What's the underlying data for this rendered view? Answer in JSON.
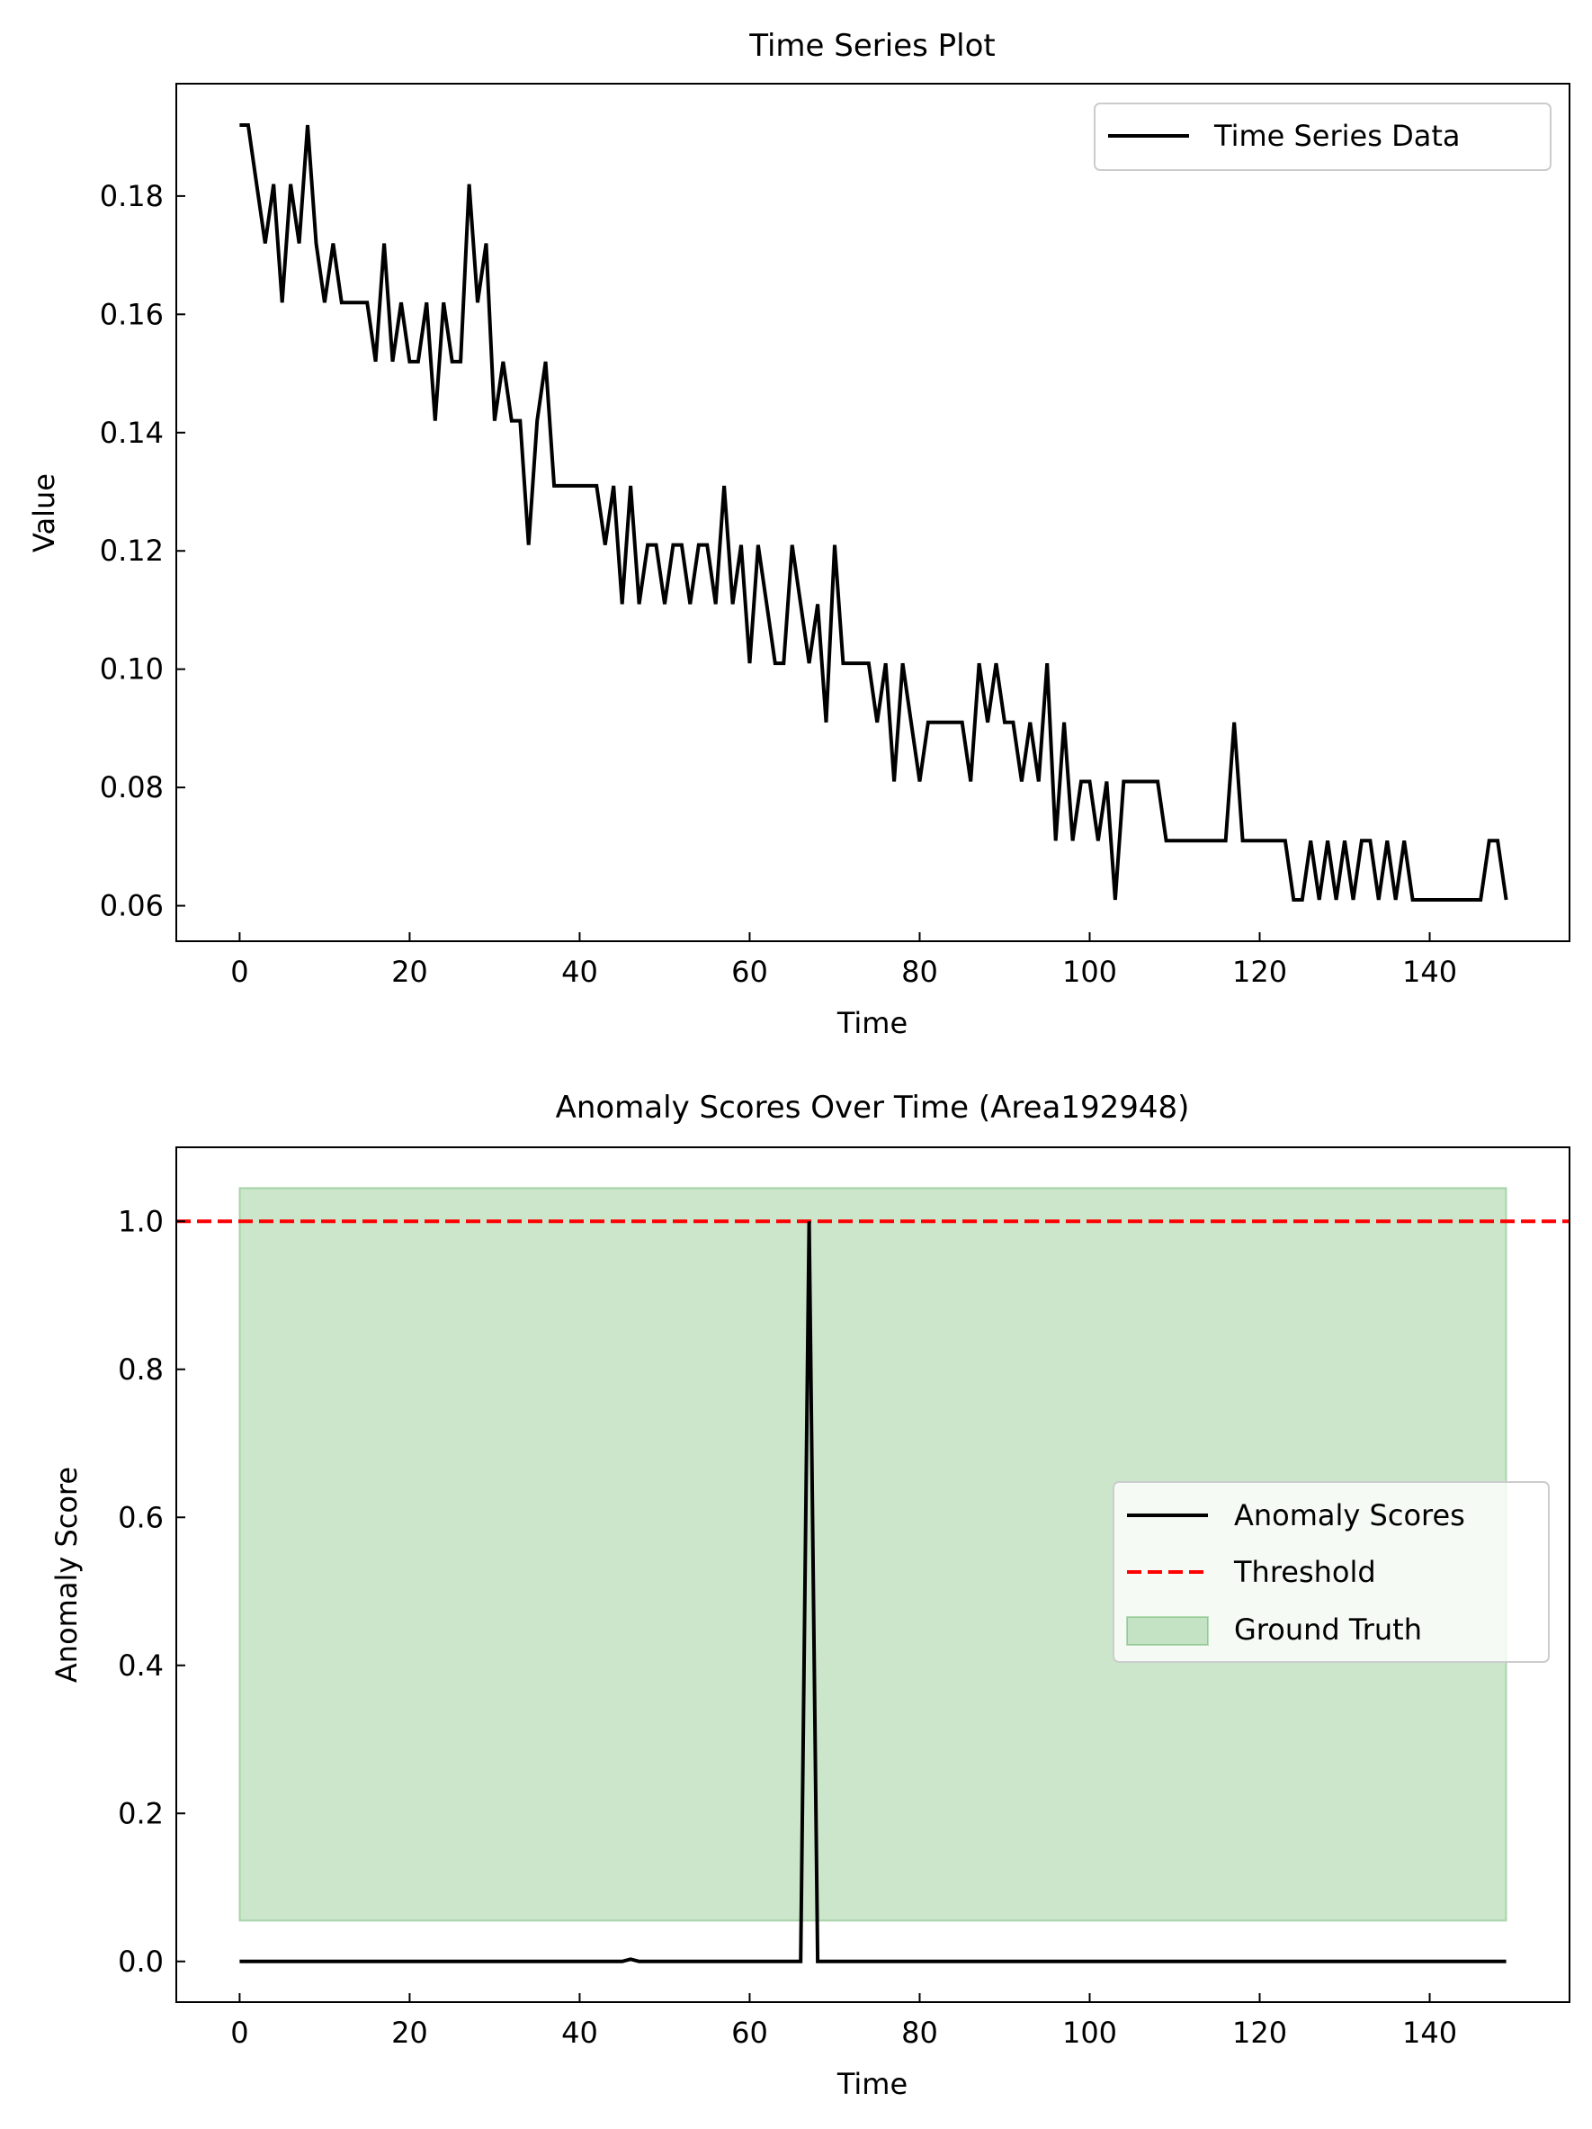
{
  "chart_data": [
    {
      "type": "line",
      "title": "Time Series Plot",
      "xlabel": "Time",
      "ylabel": "Value",
      "xlim": [
        -7.45,
        156.45
      ],
      "ylim": [
        0.054,
        0.199
      ],
      "xticks": [
        0,
        20,
        40,
        60,
        80,
        100,
        120,
        140
      ],
      "yticks": [
        0.06,
        0.08,
        0.1,
        0.12,
        0.14,
        0.16,
        0.18
      ],
      "ytick_labels": [
        "0.06",
        "0.08",
        "0.10",
        "0.12",
        "0.14",
        "0.16",
        "0.18"
      ],
      "grid": false,
      "legend": {
        "position": "top-right",
        "entries": [
          "Time Series Data"
        ]
      },
      "series": [
        {
          "name": "Time Series Data",
          "color": "#000000",
          "values": [
            0.192,
            0.192,
            0.182,
            0.172,
            0.182,
            0.162,
            0.182,
            0.172,
            0.192,
            0.172,
            0.162,
            0.172,
            0.162,
            0.162,
            0.162,
            0.162,
            0.152,
            0.172,
            0.152,
            0.162,
            0.152,
            0.152,
            0.162,
            0.142,
            0.162,
            0.152,
            0.152,
            0.182,
            0.162,
            0.172,
            0.142,
            0.152,
            0.142,
            0.142,
            0.121,
            0.142,
            0.152,
            0.131,
            0.131,
            0.131,
            0.131,
            0.131,
            0.131,
            0.121,
            0.131,
            0.111,
            0.131,
            0.111,
            0.121,
            0.121,
            0.111,
            0.121,
            0.121,
            0.111,
            0.121,
            0.121,
            0.111,
            0.131,
            0.111,
            0.121,
            0.101,
            0.121,
            0.111,
            0.101,
            0.101,
            0.121,
            0.111,
            0.101,
            0.111,
            0.091,
            0.121,
            0.101,
            0.101,
            0.101,
            0.101,
            0.091,
            0.101,
            0.081,
            0.101,
            0.091,
            0.081,
            0.091,
            0.091,
            0.091,
            0.091,
            0.091,
            0.081,
            0.101,
            0.091,
            0.101,
            0.091,
            0.091,
            0.081,
            0.091,
            0.081,
            0.101,
            0.071,
            0.091,
            0.071,
            0.081,
            0.081,
            0.071,
            0.081,
            0.061,
            0.081,
            0.081,
            0.081,
            0.081,
            0.081,
            0.071,
            0.071,
            0.071,
            0.071,
            0.071,
            0.071,
            0.071,
            0.071,
            0.091,
            0.071,
            0.071,
            0.071,
            0.071,
            0.071,
            0.071,
            0.061,
            0.061,
            0.071,
            0.061,
            0.071,
            0.061,
            0.071,
            0.061,
            0.071,
            0.071,
            0.061,
            0.071,
            0.061,
            0.071,
            0.061,
            0.061,
            0.061,
            0.061,
            0.061,
            0.061,
            0.061,
            0.061,
            0.061,
            0.071,
            0.071,
            0.061
          ]
        }
      ]
    },
    {
      "type": "line",
      "title": "Anomaly Scores Over Time (Area192948)",
      "xlabel": "Time",
      "ylabel": "Anomaly Score",
      "xlim": [
        -7.45,
        156.45
      ],
      "ylim": [
        -0.055,
        1.1
      ],
      "xticks": [
        0,
        20,
        40,
        60,
        80,
        100,
        120,
        140
      ],
      "yticks": [
        0.0,
        0.2,
        0.4,
        0.6,
        0.8,
        1.0
      ],
      "ytick_labels": [
        "0.0",
        "0.2",
        "0.4",
        "0.6",
        "0.8",
        "1.0"
      ],
      "grid": false,
      "legend": {
        "position": "center-right",
        "entries": [
          "Anomaly Scores",
          "Threshold",
          "Ground Truth"
        ]
      },
      "series": [
        {
          "name": "Anomaly Scores",
          "color": "#000000",
          "points": [
            [
              0,
              0
            ],
            [
              45,
              0
            ],
            [
              46,
              0.003
            ],
            [
              47,
              0
            ],
            [
              66,
              0
            ],
            [
              67,
              1.0
            ],
            [
              68,
              0
            ],
            [
              149,
              0
            ]
          ]
        }
      ],
      "threshold": {
        "name": "Threshold",
        "y": 1.0,
        "color": "#ff0000",
        "style": "dashed"
      },
      "ground_truth": {
        "name": "Ground Truth",
        "x": [
          0,
          149
        ],
        "y": [
          0.055,
          1.045
        ],
        "color": "#008000",
        "alpha": 0.2
      }
    }
  ]
}
